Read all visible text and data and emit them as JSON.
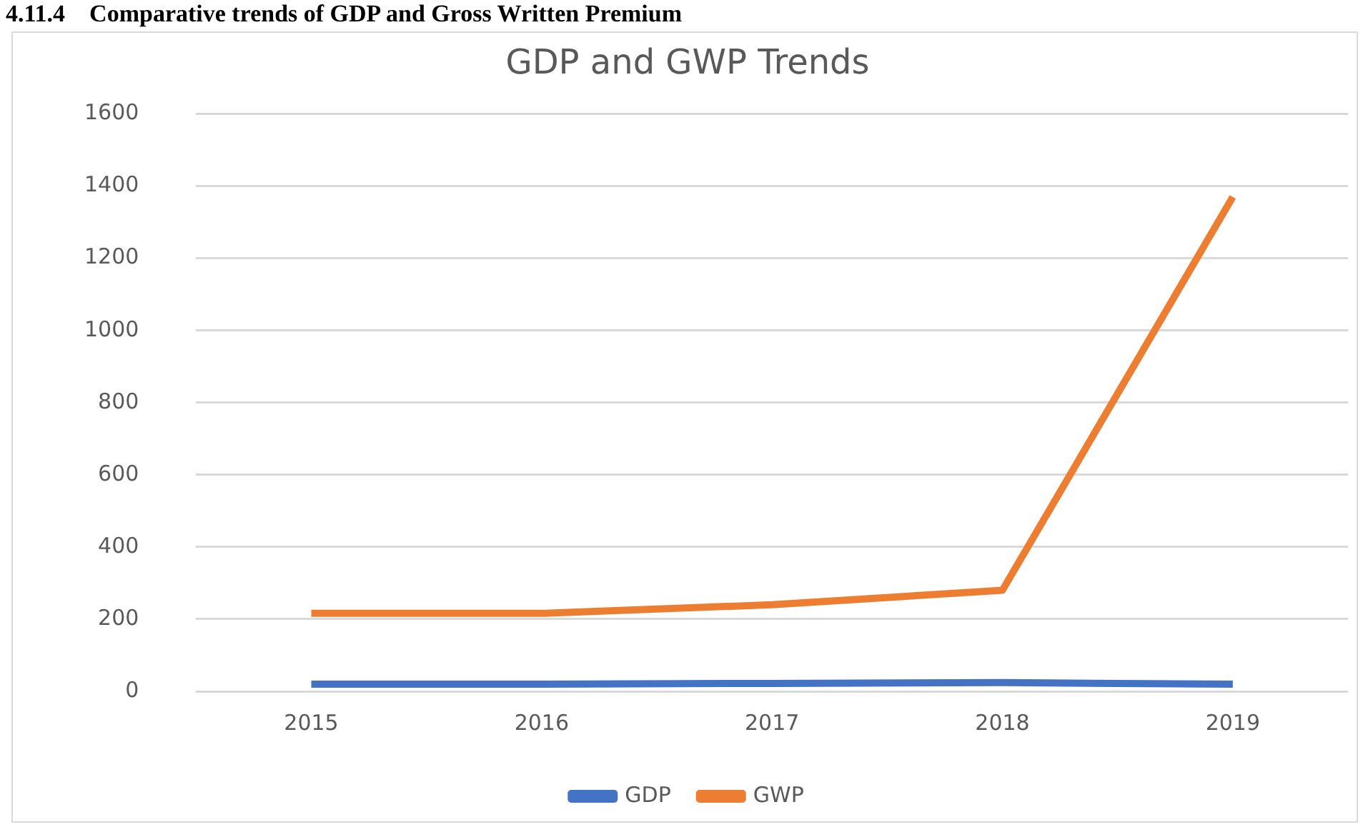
{
  "chart_data": {
    "type": "line",
    "title": "GDP and GWP Trends",
    "annotations": [
      "4.11.4    Comparative trends of GDP and Gross Written Premium"
    ],
    "categories": [
      "2015",
      "2016",
      "2017",
      "2018",
      "2019"
    ],
    "series": [
      {
        "name": "GDP",
        "color": "#4472c4",
        "values": [
          20,
          20,
          22,
          24,
          20
        ]
      },
      {
        "name": "GWP",
        "color": "#ed7d31",
        "values": [
          216,
          216,
          240,
          280,
          1370
        ]
      }
    ],
    "ylim": [
      0,
      1600
    ],
    "yticks": [
      0,
      200,
      400,
      600,
      800,
      1000,
      1200,
      1400,
      1600
    ],
    "grid": "y",
    "legend": "bottom",
    "marker": "none",
    "line_style": "solid"
  }
}
